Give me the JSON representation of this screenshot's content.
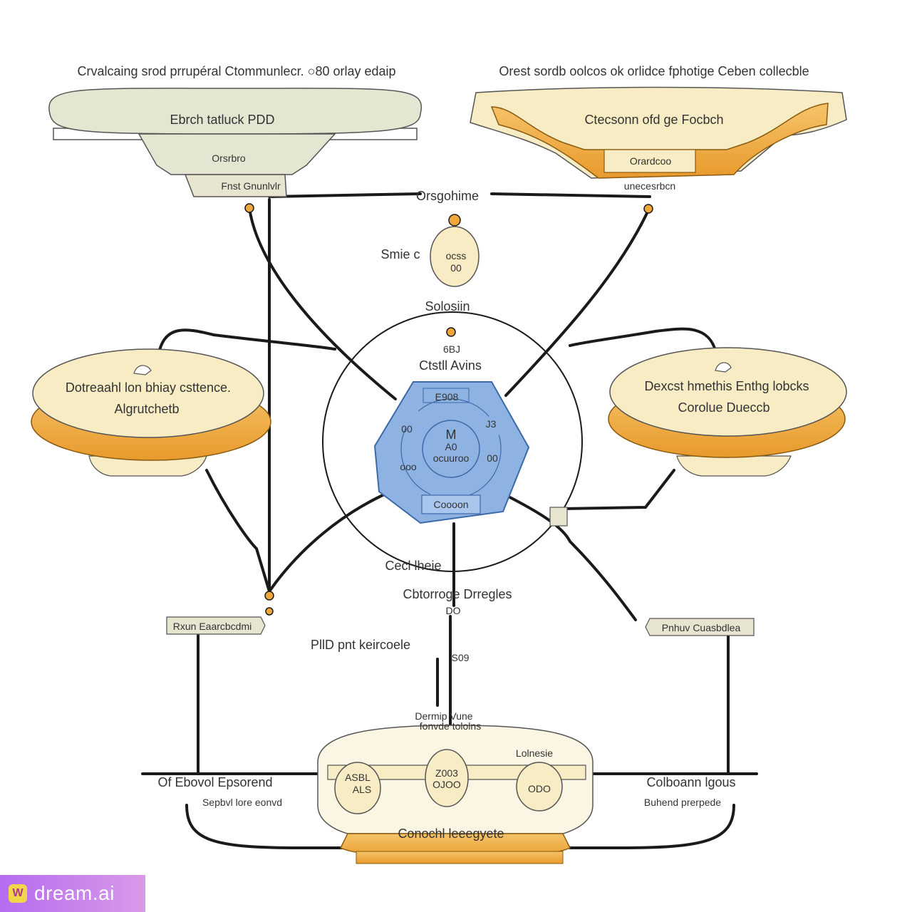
{
  "diagram": {
    "top_left": {
      "caption": "Crvalcaing srod prrupéral Ctommunlecr. ○80 orlay edaip",
      "title": "Ebrch tatluck PDD",
      "sub": "Orsrbro",
      "tag": "Fnst Gnunlvlr"
    },
    "top_right": {
      "caption": "Orest sordb oolcos ok orlidce fphotige Ceben collecble",
      "title": "Ctecsonn ofd ge Focbch",
      "sub": "Orardcoo",
      "tag": "unecesrbcn"
    },
    "left_mid": {
      "title": "Dotreaahl lon bhiay csttence.",
      "sub": "Algrutchetb"
    },
    "right_mid": {
      "title": "Dexcst hmethis Enthg lobcks",
      "sub": "Corolue Dueccb"
    },
    "center": {
      "top_label": "Orsgohime",
      "node_left_label": "Smie c",
      "node_text": "ocss",
      "node_sub": "00",
      "solution_label": "Solosiin",
      "small_num": "6BJ",
      "hub_label": "Ctstll Avins",
      "hub_top": "E908",
      "hub_center": "M",
      "hub_center_a": "A0",
      "hub_center_b": "ocuuroo",
      "hub_left_a": "00",
      "hub_left_b": "ooo",
      "hub_right_a": "J3",
      "hub_right_b": "00",
      "hub_bottom": "Coooon"
    },
    "lower_center": {
      "label1": "Cecl lheie",
      "label2": "Cbtorroge Drregles",
      "label3": "DO",
      "label4": "PllD pnt keircoele",
      "label5": "S09",
      "bottom_top_a": "Dermip Vune",
      "bottom_top_b": "fonvde tololns",
      "bottom_title": "Conochl leeegyete",
      "pill_left_a": "ASBL",
      "pill_left_b": "ALS",
      "pill_mid_a": "Z003",
      "pill_mid_b": "OJOO",
      "pill_right_tag": "Lolnesie",
      "pill_right": "ODO"
    },
    "side_tags": {
      "left": "Rxun Eaarcbcdmi",
      "right": "Pnhuv Cuasbdlea"
    },
    "bottom_labels": {
      "left_a": "Of Ebovol Epsorend",
      "left_b": "Sepbvl lore eonvd",
      "right_a": "Colboann lgous",
      "right_b": "Buhend prerpede"
    }
  },
  "watermark": {
    "icon": "W",
    "text": "dream.ai"
  },
  "colors": {
    "cream": "#f7ecc4",
    "orange": "#f0a73a",
    "sage": "#e4e6d2",
    "blue": "#8eb3e3",
    "line": "#1a1a1a"
  }
}
